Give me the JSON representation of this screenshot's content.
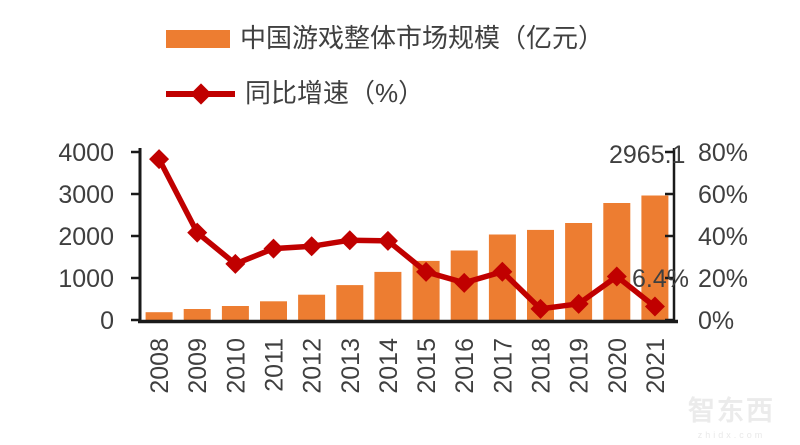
{
  "chart_data": {
    "type": "bar+line",
    "title": "",
    "categories": [
      "2008",
      "2009",
      "2010",
      "2011",
      "2012",
      "2013",
      "2014",
      "2015",
      "2016",
      "2017",
      "2018",
      "2019",
      "2020",
      "2021"
    ],
    "series": [
      {
        "name": "中国游戏整体市场规模（亿元）",
        "type": "bar",
        "axis": "left",
        "color": "#ED7D31",
        "values": [
          185.6,
          262.8,
          333.0,
          446.1,
          602.8,
          831.7,
          1144.8,
          1407.0,
          1655.7,
          2036.1,
          2144.4,
          2308.8,
          2786.9,
          2965.1
        ]
      },
      {
        "name": "同比增速（%）",
        "type": "line",
        "axis": "right",
        "color": "#C00000",
        "marker": "diamond",
        "values": [
          76.6,
          41.6,
          26.7,
          34.0,
          35.1,
          38.0,
          37.7,
          22.9,
          17.7,
          23.0,
          5.3,
          7.7,
          20.7,
          6.4
        ]
      }
    ],
    "left_axis": {
      "min": 0,
      "max": 4000,
      "ticks": [
        "0",
        "1000",
        "2000",
        "3000",
        "4000"
      ]
    },
    "right_axis": {
      "min": 0,
      "max": 80,
      "ticks": [
        "0%",
        "20%",
        "40%",
        "60%",
        "80%"
      ]
    },
    "annotations": [
      {
        "text": "2965.1",
        "attached_to": "2021 bar"
      },
      {
        "text": "6.4%",
        "attached_to": "2021 line point"
      }
    ],
    "legend_position": "top-left",
    "grid": false
  },
  "colors": {
    "bar": "#ED7D31",
    "line": "#C00000",
    "axis": "#1a1a1a",
    "tick_label": "#3f3f3f"
  },
  "watermark": {
    "name": "智东西",
    "url": "zhidx.com"
  }
}
